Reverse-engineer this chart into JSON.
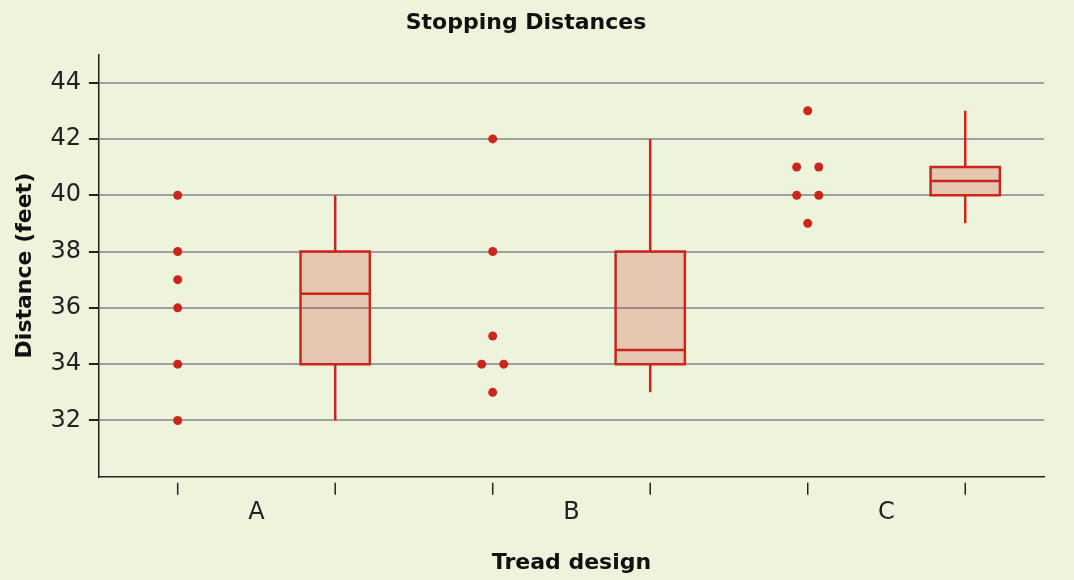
{
  "chart_data": {
    "type": "box",
    "title": "Stopping Distances",
    "xlabel": "Tread design",
    "ylabel": "Distance (feet)",
    "categories": [
      "A",
      "B",
      "C"
    ],
    "boxes": [
      {
        "low": 32,
        "q1": 34,
        "median": 36.5,
        "q3": 38,
        "high": 40
      },
      {
        "low": 33,
        "q1": 34,
        "median": 34.5,
        "q3": 38,
        "high": 42
      },
      {
        "low": 39,
        "q1": 40,
        "median": 40.5,
        "q3": 41,
        "high": 43
      }
    ],
    "color": "#c9271c",
    "series": [
      {
        "type": "scatter",
        "color": "#c9271c",
        "x": [
          "A",
          "A",
          "A",
          "A",
          "A",
          "A",
          "B",
          "B",
          "B",
          "B",
          "B",
          "B",
          "C",
          "C",
          "C",
          "C",
          "C",
          "C"
        ],
        "values": [
          40,
          38,
          37,
          36,
          34,
          32,
          42,
          38,
          35,
          34,
          34,
          33,
          43,
          41,
          41,
          40,
          40,
          39
        ]
      }
    ],
    "ylim": [
      30,
      45
    ],
    "yticks": [
      32,
      34,
      36,
      38,
      40,
      42,
      44
    ],
    "grid": "y",
    "legend": false,
    "marker": "circle"
  }
}
